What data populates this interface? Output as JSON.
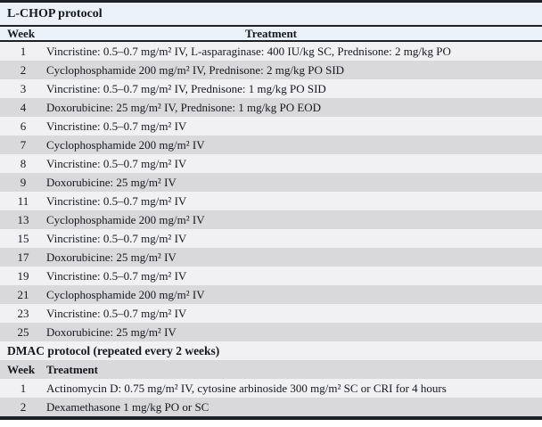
{
  "colors": {
    "header_blue": "#eaf1f8",
    "row_light": "#f1f1f3",
    "row_shaded": "#d9d9db",
    "rule_black": "#1c2127",
    "text": "#15181d"
  },
  "lchop_section": {
    "title": "L-CHOP protocol",
    "week_header": "Week",
    "treatment_header": "Treatment",
    "rows": [
      {
        "week": "1",
        "treatment": "Vincristine: 0.5–0.7 mg/m² IV, L-asparaginase: 400 IU/kg SC, Prednisone: 2 mg/kg PO"
      },
      {
        "week": "2",
        "treatment": "Cyclophosphamide 200 mg/m² IV, Prednisone: 2 mg/kg PO SID"
      },
      {
        "week": "3",
        "treatment": "Vincristine: 0.5–0.7 mg/m² IV, Prednisone: 1 mg/kg PO SID"
      },
      {
        "week": "4",
        "treatment": "Doxorubicine: 25 mg/m² IV, Prednisone: 1 mg/kg PO EOD"
      },
      {
        "week": "6",
        "treatment": "Vincristine: 0.5–0.7 mg/m² IV"
      },
      {
        "week": "7",
        "treatment": "Cyclophosphamide 200 mg/m² IV"
      },
      {
        "week": "8",
        "treatment": "Vincristine: 0.5–0.7 mg/m² IV"
      },
      {
        "week": "9",
        "treatment": "Doxorubicine: 25 mg/m² IV"
      },
      {
        "week": "11",
        "treatment": "Vincristine: 0.5–0.7 mg/m² IV"
      },
      {
        "week": "13",
        "treatment": "Cyclophosphamide 200 mg/m² IV"
      },
      {
        "week": "15",
        "treatment": "Vincristine: 0.5–0.7 mg/m² IV"
      },
      {
        "week": "17",
        "treatment": "Doxorubicine: 25 mg/m² IV"
      },
      {
        "week": "19",
        "treatment": "Vincristine: 0.5–0.7 mg/m² IV"
      },
      {
        "week": "21",
        "treatment": "Cyclophosphamide 200 mg/m² IV"
      },
      {
        "week": "23",
        "treatment": "Vincristine: 0.5–0.7 mg/m² IV"
      },
      {
        "week": "25",
        "treatment": "Doxorubicine: 25 mg/m² IV"
      }
    ]
  },
  "dmac_section": {
    "title": "DMAC protocol (repeated every 2 weeks)",
    "week_header": "Week",
    "treatment_header": "Treatment",
    "rows": [
      {
        "week": "1",
        "treatment": "Actinomycin D: 0.75 mg/m² IV, cytosine arbinoside 300 mg/m² SC or CRI for 4 hours"
      },
      {
        "week": "2",
        "treatment": "Dexamethasone 1 mg/kg PO or SC"
      }
    ]
  }
}
